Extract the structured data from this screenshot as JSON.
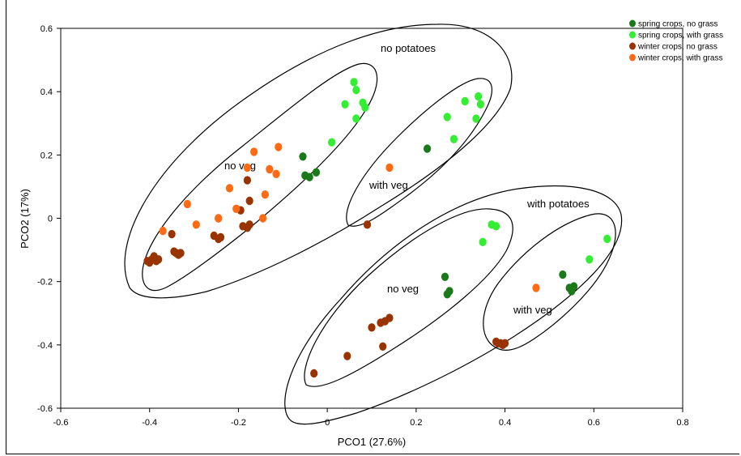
{
  "chart_data": {
    "type": "scatter",
    "xlabel": "PCO1 (27.6%)",
    "ylabel": "PCO2 (17%)",
    "xlim": [
      -0.6,
      0.8
    ],
    "ylim": [
      -0.6,
      0.6
    ],
    "xticks": [
      "-0.6",
      "-0.4",
      "-0.2",
      "0",
      "0.2",
      "0.4",
      "0.6",
      "0.8"
    ],
    "yticks": [
      "-0.6",
      "-0.4",
      "-0.2",
      "0",
      "0.2",
      "0.4",
      "0.6"
    ],
    "legend_position": "top-right",
    "series": [
      {
        "name": "spring crops, no grass",
        "color": "#1a7a1a",
        "points": [
          [
            -0.055,
            0.195
          ],
          [
            -0.05,
            0.135
          ],
          [
            -0.04,
            0.13
          ],
          [
            -0.025,
            0.145
          ],
          [
            0.225,
            0.22
          ],
          [
            0.265,
            -0.185
          ],
          [
            0.275,
            -0.23
          ],
          [
            0.27,
            -0.24
          ],
          [
            0.53,
            -0.178
          ],
          [
            0.555,
            -0.215
          ],
          [
            0.55,
            -0.23
          ],
          [
            0.545,
            -0.22
          ]
        ]
      },
      {
        "name": "spring crops, with grass",
        "color": "#33ee33",
        "points": [
          [
            0.01,
            0.24
          ],
          [
            0.04,
            0.36
          ],
          [
            0.06,
            0.43
          ],
          [
            0.065,
            0.405
          ],
          [
            0.065,
            0.315
          ],
          [
            0.08,
            0.365
          ],
          [
            0.085,
            0.35
          ],
          [
            0.27,
            0.32
          ],
          [
            0.285,
            0.25
          ],
          [
            0.31,
            0.37
          ],
          [
            0.335,
            0.315
          ],
          [
            0.34,
            0.385
          ],
          [
            0.345,
            0.36
          ],
          [
            0.35,
            -0.075
          ],
          [
            0.37,
            -0.02
          ],
          [
            0.38,
            -0.025
          ],
          [
            0.59,
            -0.13
          ],
          [
            0.63,
            -0.065
          ]
        ]
      },
      {
        "name": "winter crops, no grass",
        "color": "#993300",
        "points": [
          [
            -0.405,
            -0.135
          ],
          [
            -0.4,
            -0.14
          ],
          [
            -0.395,
            -0.13
          ],
          [
            -0.39,
            -0.12
          ],
          [
            -0.385,
            -0.135
          ],
          [
            -0.38,
            -0.13
          ],
          [
            -0.35,
            -0.05
          ],
          [
            -0.345,
            -0.105
          ],
          [
            -0.34,
            -0.11
          ],
          [
            -0.335,
            -0.115
          ],
          [
            -0.33,
            -0.11
          ],
          [
            -0.255,
            -0.055
          ],
          [
            -0.245,
            -0.065
          ],
          [
            -0.245,
            0.0
          ],
          [
            -0.24,
            -0.06
          ],
          [
            -0.195,
            0.025
          ],
          [
            -0.19,
            -0.025
          ],
          [
            -0.18,
            -0.03
          ],
          [
            -0.18,
            0.12
          ],
          [
            -0.175,
            0.055
          ],
          [
            -0.175,
            -0.02
          ],
          [
            -0.03,
            -0.49
          ],
          [
            0.045,
            -0.435
          ],
          [
            0.1,
            -0.345
          ],
          [
            0.12,
            -0.33
          ],
          [
            0.125,
            -0.405
          ],
          [
            0.13,
            -0.325
          ],
          [
            0.14,
            -0.315
          ],
          [
            0.09,
            -0.02
          ],
          [
            0.38,
            -0.39
          ],
          [
            0.385,
            -0.395
          ],
          [
            0.39,
            -0.395
          ],
          [
            0.395,
            -0.4
          ],
          [
            0.4,
            -0.395
          ]
        ]
      },
      {
        "name": "winter crops, with grass",
        "color": "#ff6a13",
        "points": [
          [
            -0.37,
            -0.04
          ],
          [
            -0.315,
            0.045
          ],
          [
            -0.295,
            -0.02
          ],
          [
            -0.245,
            0.0
          ],
          [
            -0.22,
            0.095
          ],
          [
            -0.205,
            0.03
          ],
          [
            -0.18,
            0.16
          ],
          [
            -0.165,
            0.21
          ],
          [
            -0.145,
            0.0
          ],
          [
            -0.14,
            0.075
          ],
          [
            -0.13,
            0.155
          ],
          [
            -0.115,
            0.14
          ],
          [
            -0.11,
            0.225
          ],
          [
            0.14,
            0.16
          ],
          [
            0.47,
            -0.22
          ]
        ]
      }
    ],
    "annotations": [
      "no potatoes",
      "no veg",
      "with veg",
      "with potatoes",
      "no veg",
      "with veg"
    ]
  }
}
